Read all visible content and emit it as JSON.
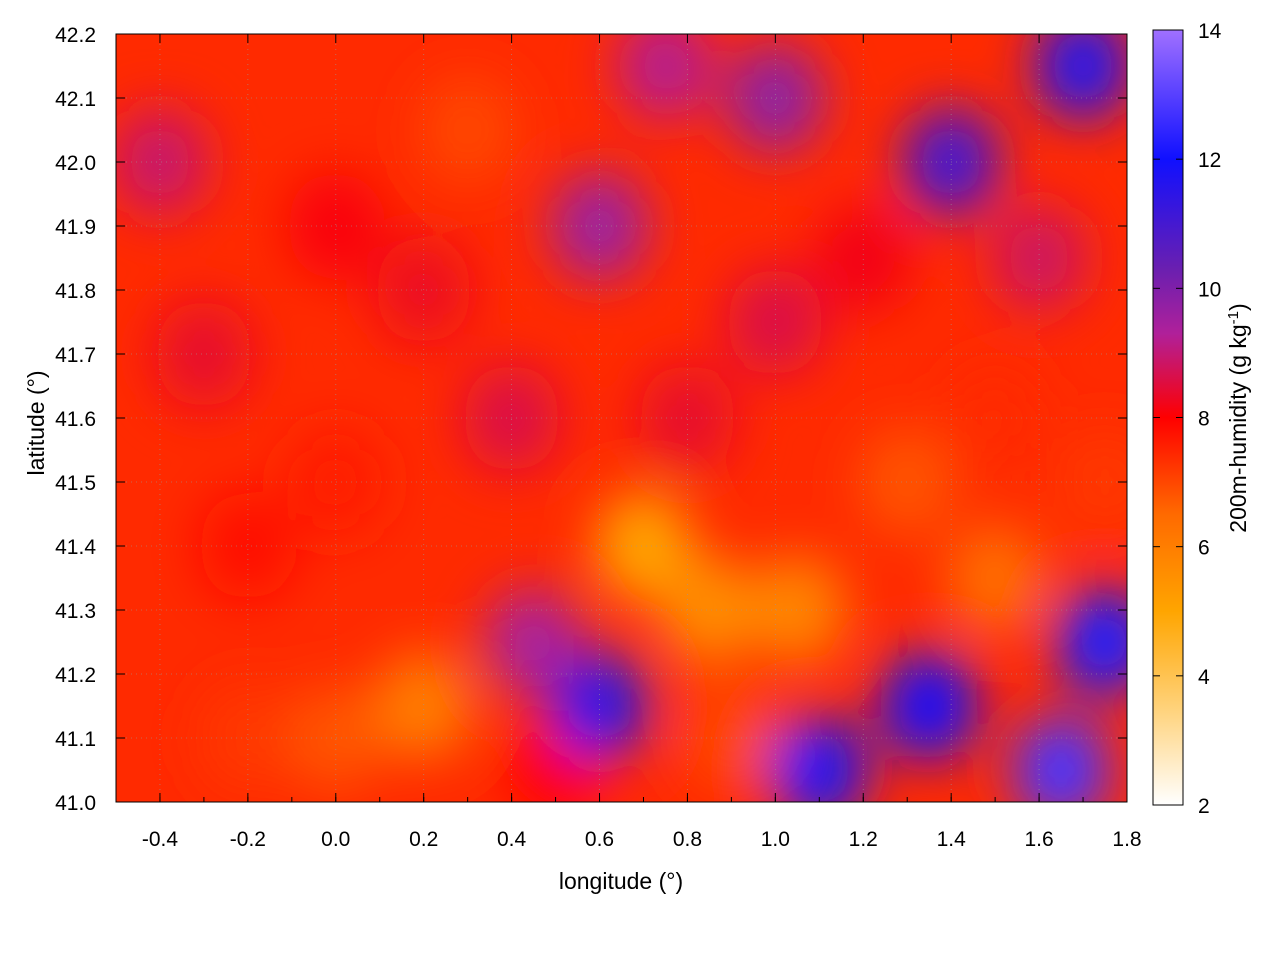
{
  "chart_data": {
    "type": "heatmap",
    "xlabel": "longitude (°)",
    "ylabel": "latitude (°)",
    "colorbar_label": "200m-humidity (g kg",
    "colorbar_label_superscript": "-1",
    "colorbar_label_close": ")",
    "xlim": [
      -0.5,
      1.8
    ],
    "ylim": [
      41.0,
      42.2
    ],
    "clim": [
      2,
      14
    ],
    "x_ticks": [
      "-0.4",
      "-0.2",
      "0.0",
      "0.2",
      "0.4",
      "0.6",
      "0.8",
      "1.0",
      "1.2",
      "1.4",
      "1.6",
      "1.8"
    ],
    "x_tick_values": [
      -0.4,
      -0.2,
      0.0,
      0.2,
      0.4,
      0.6,
      0.8,
      1.0,
      1.2,
      1.4,
      1.6,
      1.8
    ],
    "y_ticks": [
      "41.0",
      "41.1",
      "41.2",
      "41.3",
      "41.4",
      "41.5",
      "41.6",
      "41.7",
      "41.8",
      "41.9",
      "42.0",
      "42.1",
      "42.2"
    ],
    "y_tick_values": [
      41.0,
      41.1,
      41.2,
      41.3,
      41.4,
      41.5,
      41.6,
      41.7,
      41.8,
      41.9,
      42.0,
      42.1,
      42.2
    ],
    "colorbar_ticks": [
      "2",
      "4",
      "6",
      "8",
      "10",
      "12",
      "14"
    ],
    "colorbar_tick_values": [
      2,
      4,
      6,
      8,
      10,
      12,
      14
    ],
    "colormap": [
      "#ffffff",
      "#ffd27a",
      "#ffa500",
      "#ff6a00",
      "#ff0000",
      "#b0209a",
      "#6a1fb0",
      "#1010ff",
      "#a070ff"
    ],
    "colormap_stops": [
      2,
      3.5,
      5,
      6.5,
      8,
      9.3,
      10.3,
      12,
      14
    ],
    "grid": true,
    "humidity_field_samples": [
      {
        "lon": -0.4,
        "lat": 42.0,
        "value": 8.9
      },
      {
        "lon": -0.3,
        "lat": 41.7,
        "value": 8.4
      },
      {
        "lon": -0.2,
        "lat": 41.4,
        "value": 7.8
      },
      {
        "lon": -0.2,
        "lat": 41.1,
        "value": 7.2
      },
      {
        "lon": 0.0,
        "lat": 41.9,
        "value": 8.1
      },
      {
        "lon": 0.0,
        "lat": 41.5,
        "value": 7.6
      },
      {
        "lon": 0.0,
        "lat": 41.1,
        "value": 6.8
      },
      {
        "lon": 0.2,
        "lat": 41.15,
        "value": 6.0
      },
      {
        "lon": 0.2,
        "lat": 41.8,
        "value": 8.3
      },
      {
        "lon": 0.3,
        "lat": 42.05,
        "value": 7.0
      },
      {
        "lon": 0.4,
        "lat": 41.6,
        "value": 8.6
      },
      {
        "lon": 0.45,
        "lat": 41.25,
        "value": 9.4
      },
      {
        "lon": 0.5,
        "lat": 41.05,
        "value": 8.0
      },
      {
        "lon": 0.6,
        "lat": 41.15,
        "value": 11.5
      },
      {
        "lon": 0.6,
        "lat": 41.9,
        "value": 9.6
      },
      {
        "lon": 0.7,
        "lat": 41.4,
        "value": 5.0
      },
      {
        "lon": 0.75,
        "lat": 42.15,
        "value": 9.2
      },
      {
        "lon": 0.8,
        "lat": 41.6,
        "value": 8.4
      },
      {
        "lon": 0.85,
        "lat": 41.3,
        "value": 5.6
      },
      {
        "lon": 0.9,
        "lat": 41.1,
        "value": 7.0
      },
      {
        "lon": 1.0,
        "lat": 42.1,
        "value": 9.8
      },
      {
        "lon": 1.0,
        "lat": 41.75,
        "value": 8.6
      },
      {
        "lon": 1.05,
        "lat": 41.3,
        "value": 5.8
      },
      {
        "lon": 1.1,
        "lat": 41.05,
        "value": 11.8
      },
      {
        "lon": 1.2,
        "lat": 41.85,
        "value": 8.2
      },
      {
        "lon": 1.3,
        "lat": 41.5,
        "value": 6.8
      },
      {
        "lon": 1.35,
        "lat": 41.15,
        "value": 11.9
      },
      {
        "lon": 1.4,
        "lat": 42.0,
        "value": 11.0
      },
      {
        "lon": 1.5,
        "lat": 41.6,
        "value": 7.4
      },
      {
        "lon": 1.5,
        "lat": 41.35,
        "value": 6.4
      },
      {
        "lon": 1.6,
        "lat": 41.85,
        "value": 8.8
      },
      {
        "lon": 1.65,
        "lat": 41.05,
        "value": 12.8
      },
      {
        "lon": 1.7,
        "lat": 42.15,
        "value": 11.6
      },
      {
        "lon": 1.75,
        "lat": 41.5,
        "value": 7.2
      },
      {
        "lon": 1.75,
        "lat": 41.25,
        "value": 12.2
      }
    ]
  }
}
